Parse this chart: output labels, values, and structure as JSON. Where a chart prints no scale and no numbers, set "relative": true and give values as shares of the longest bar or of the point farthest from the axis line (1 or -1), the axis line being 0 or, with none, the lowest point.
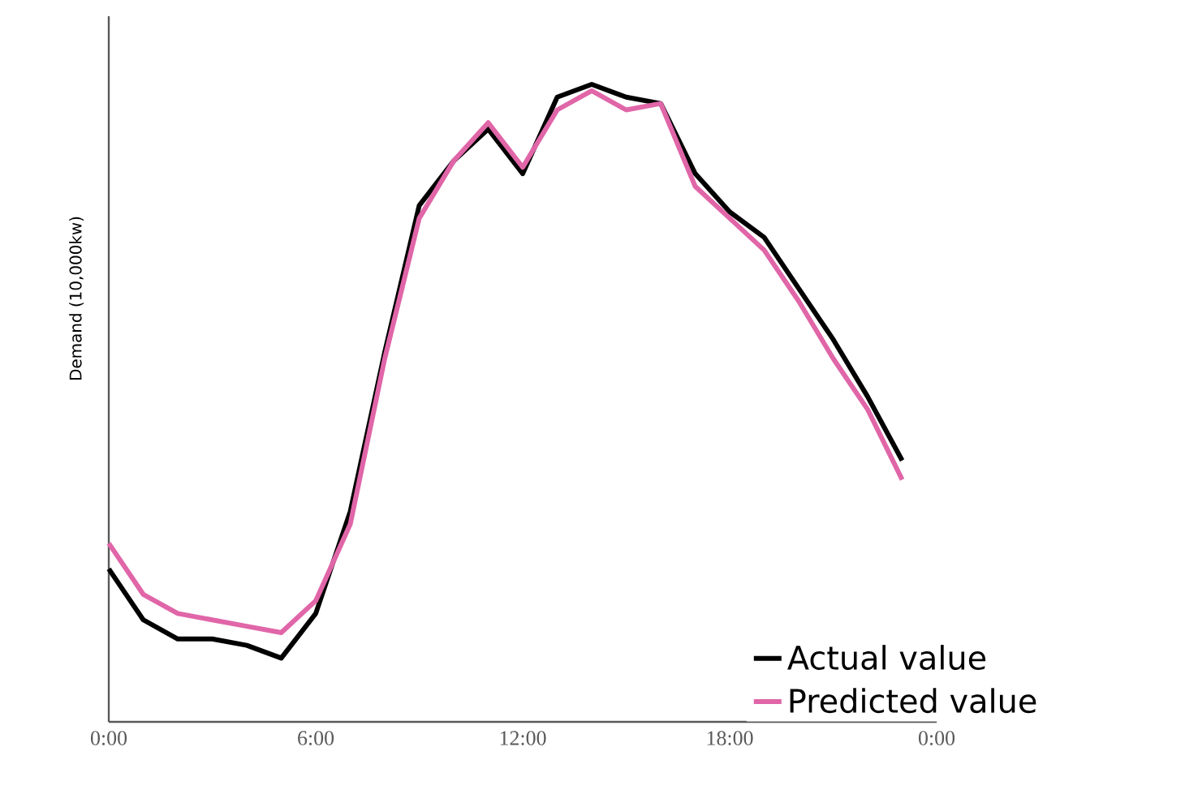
{
  "chart_data": {
    "type": "line",
    "ylabel": "Demand (10,000kw)",
    "relative": true,
    "x": [
      0,
      1,
      2,
      3,
      4,
      5,
      6,
      7,
      8,
      9,
      10,
      11,
      12,
      13,
      14,
      15,
      16,
      17,
      18,
      19,
      20,
      21,
      22,
      23
    ],
    "xlim": [
      0,
      24
    ],
    "xticks": [
      {
        "value": 0,
        "label": "0:00"
      },
      {
        "value": 6,
        "label": "6:00"
      },
      {
        "value": 12,
        "label": "12:00"
      },
      {
        "value": 18,
        "label": "18:00"
      },
      {
        "value": 24,
        "label": "0:00"
      }
    ],
    "tick_labels": "x",
    "legend": "bottom right",
    "marker": "none",
    "line_style": "solid",
    "series": [
      {
        "name": "Actual value",
        "color": "#000000",
        "values": [
          0.24,
          0.16,
          0.13,
          0.13,
          0.12,
          0.1,
          0.17,
          0.33,
          0.58,
          0.81,
          0.88,
          0.93,
          0.86,
          0.98,
          1.0,
          0.98,
          0.97,
          0.86,
          0.8,
          0.76,
          0.68,
          0.6,
          0.51,
          0.41
        ]
      },
      {
        "name": "Predicted value",
        "color": "#e066a8",
        "values": [
          0.28,
          0.2,
          0.17,
          0.16,
          0.15,
          0.14,
          0.19,
          0.31,
          0.57,
          0.79,
          0.88,
          0.94,
          0.87,
          0.96,
          0.99,
          0.96,
          0.97,
          0.84,
          0.79,
          0.74,
          0.66,
          0.57,
          0.49,
          0.38
        ]
      }
    ]
  }
}
